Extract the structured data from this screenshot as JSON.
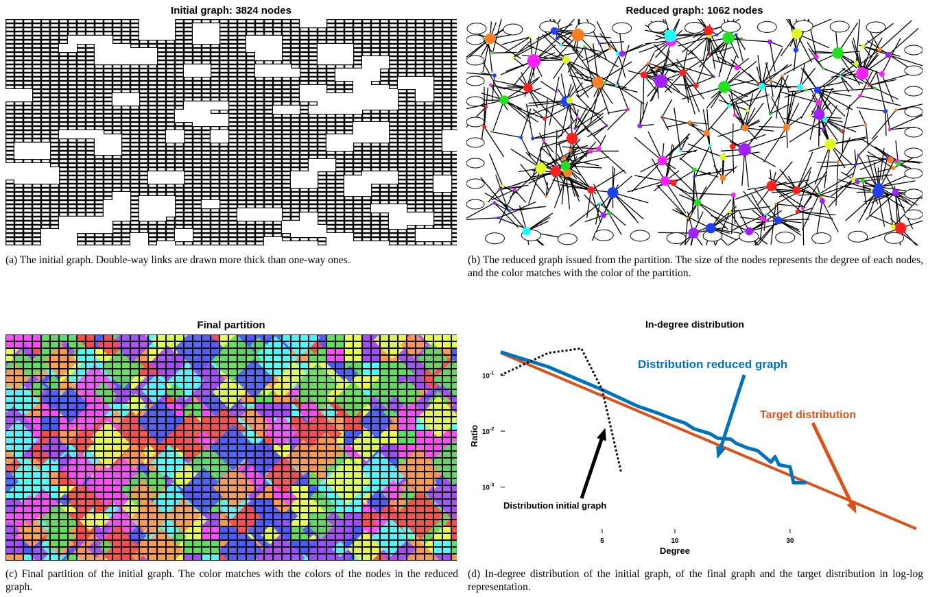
{
  "panel_a": {
    "title": "Initial graph: 3824 nodes",
    "caption": "(a) The initial graph. Double-way links are drawn more thick than one-way ones."
  },
  "panel_b": {
    "title": "Reduced graph: 1062 nodes",
    "caption": "(b) The reduced graph issued from the partition. The size of the nodes represents the degree of each nodes, and the color matches with the color of the partition."
  },
  "panel_c": {
    "title": "Final partition",
    "caption": "(c) Final partition of the initial graph. The color matches with the colors of the nodes in the reduced graph."
  },
  "panel_d": {
    "caption": "(d) In-degree distribution of the initial graph, of the final graph and the target distribution in log-log representation."
  },
  "node_colors": [
    "#ff2020",
    "#20e020",
    "#2040ff",
    "#ff20ff",
    "#20ffff",
    "#ff8020",
    "#a020ff",
    "#e0ff20"
  ],
  "chart_data": {
    "type": "line",
    "title": "In-degree distribution",
    "xlabel": "Degree",
    "ylabel": "Ratio",
    "xscale": "log",
    "yscale": "log",
    "xlim": [
      1.9,
      100
    ],
    "ylim": [
      0.00015,
      0.45
    ],
    "x_ticks": [
      {
        "value": 5,
        "label": "5"
      },
      {
        "value": 10,
        "label": "10"
      },
      {
        "value": 30,
        "label": "30"
      }
    ],
    "y_ticks": [
      {
        "value": 0.1,
        "label": "10",
        "exp": "-1"
      },
      {
        "value": 0.01,
        "label": "10",
        "exp": "-2"
      },
      {
        "value": 0.001,
        "label": "10",
        "exp": "-3"
      }
    ],
    "series": [
      {
        "name": "Distribution initial graph",
        "color": "#000000",
        "style": "dotted",
        "x": [
          1.9,
          3,
          4.1,
          5,
          6
        ],
        "y": [
          0.1,
          0.25,
          0.3,
          0.055,
          0.0018
        ]
      },
      {
        "name": "Distribution reduced graph",
        "color": "#0072bd",
        "style": "solid",
        "x": [
          1.9,
          3,
          5,
          7,
          8.5,
          10,
          11,
          12,
          14,
          15,
          17,
          18,
          20,
          22,
          25,
          26,
          27,
          30,
          31,
          35
        ],
        "y": [
          0.26,
          0.14,
          0.055,
          0.028,
          0.021,
          0.016,
          0.014,
          0.011,
          0.009,
          0.0075,
          0.0072,
          0.006,
          0.005,
          0.0045,
          0.0028,
          0.0035,
          0.0025,
          0.0023,
          0.0012,
          0.0012
        ]
      },
      {
        "name": "Target distribution",
        "color": "#d95319",
        "style": "solid",
        "x": [
          1.9,
          100
        ],
        "y": [
          0.25,
          0.00018
        ]
      }
    ]
  }
}
